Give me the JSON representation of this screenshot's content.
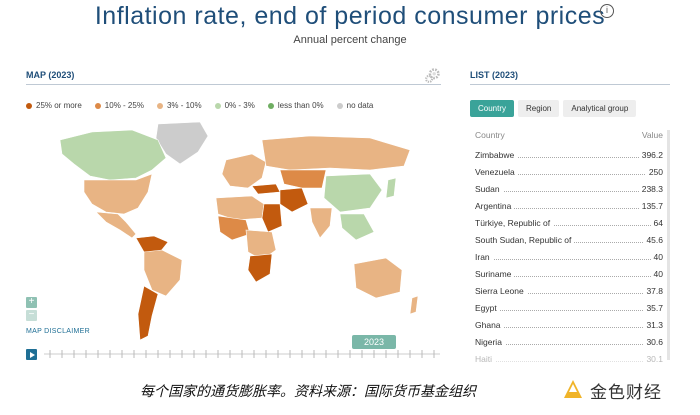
{
  "header": {
    "title": "Inflation rate, end of period consumer prices",
    "subtitle": "Annual percent change",
    "info_icon": "info-icon"
  },
  "map_section": {
    "heading": "MAP (2023)",
    "settings_icon": "gear-icon",
    "legend": [
      {
        "label": "25% or more",
        "color": "#c25a0e"
      },
      {
        "label": "10% - 25%",
        "color": "#dd8a47"
      },
      {
        "label": "3% - 10%",
        "color": "#e8b484"
      },
      {
        "label": "0% - 3%",
        "color": "#b9d7ab"
      },
      {
        "label": "less than 0%",
        "color": "#6fae62"
      },
      {
        "label": "no data",
        "color": "#cccccc"
      }
    ],
    "zoom_in": "+",
    "zoom_out": "−",
    "disclaimer": "MAP DISCLAIMER",
    "play_icon": "play-icon",
    "year": "2023"
  },
  "list_section": {
    "heading": "LIST (2023)",
    "tabs": [
      {
        "label": "Country",
        "active": true
      },
      {
        "label": "Region",
        "active": false
      },
      {
        "label": "Analytical group",
        "active": false
      }
    ],
    "col_country": "Country",
    "col_value": "Value",
    "rows": [
      {
        "country": "Zimbabwe",
        "value": "396.2"
      },
      {
        "country": "Venezuela",
        "value": "250"
      },
      {
        "country": "Sudan",
        "value": "238.3"
      },
      {
        "country": "Argentina",
        "value": "135.7"
      },
      {
        "country": "Türkiye, Republic of",
        "value": "64"
      },
      {
        "country": "South Sudan, Republic of",
        "value": "45.6"
      },
      {
        "country": "Iran",
        "value": "40"
      },
      {
        "country": "Suriname",
        "value": "40"
      },
      {
        "country": "Sierra Leone",
        "value": "37.8"
      },
      {
        "country": "Egypt",
        "value": "35.7"
      },
      {
        "country": "Ghana",
        "value": "31.3"
      },
      {
        "country": "Nigeria",
        "value": "30.6"
      },
      {
        "country": "Haiti",
        "value": "30.1"
      }
    ]
  },
  "caption": {
    "text": "每个国家的通货膨胀率。资料来源：国际货币基金组织",
    "watermark": "金色财经"
  },
  "colors": {
    "title": "#1f4e79",
    "accent": "#3aa399",
    "map_high": "#c25a0e",
    "map_mid": "#dd8a47",
    "map_low": "#e8b484",
    "map_green": "#b9d7ab",
    "map_nodata": "#cccccc"
  }
}
